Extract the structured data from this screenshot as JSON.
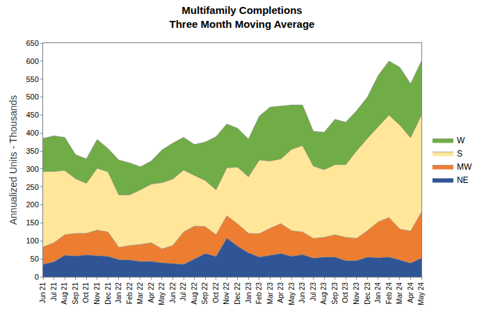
{
  "chart_data": {
    "type": "area",
    "title": "Multifamily Completions",
    "subtitle": "Three Month Moving Average",
    "y_label": "Annualized Units - Thousands",
    "stacked": true,
    "grid": false,
    "legend": "right",
    "categories": [
      "Jun 21",
      "Jul 21",
      "Aug 21",
      "Sep 21",
      "Oct 21",
      "Nov 21",
      "Dec 21",
      "Jan 22",
      "Feb 22",
      "Mar 22",
      "Apr 22",
      "May 22",
      "Jun 22",
      "Jul 22",
      "Aug 22",
      "Sep 22",
      "Oct 22",
      "Nov 22",
      "Dec 22",
      "Jan 23",
      "Feb 23",
      "Mar 23",
      "Apr 23",
      "May 23",
      "Jun 23",
      "Jul 23",
      "Aug 23",
      "Sep 23",
      "Oct 23",
      "Nov 23",
      "Dec 23",
      "Jan 24",
      "Feb 24",
      "Mar 24",
      "Apr 24",
      "May 24"
    ],
    "series": [
      {
        "name": "NE",
        "color": "#2f5597",
        "values": [
          35,
          42,
          60,
          58,
          61,
          59,
          57,
          48,
          47,
          43,
          43,
          39,
          37,
          35,
          50,
          65,
          57,
          108,
          85,
          67,
          55,
          60,
          65,
          57,
          62,
          52,
          55,
          55,
          45,
          45,
          55,
          53,
          55,
          47,
          38,
          52
        ]
      },
      {
        "name": "MW",
        "color": "#ed7d31",
        "values": [
          48,
          53,
          57,
          63,
          60,
          71,
          68,
          34,
          40,
          47,
          52,
          39,
          50,
          90,
          91,
          75,
          60,
          62,
          62,
          54,
          65,
          75,
          83,
          71,
          63,
          55,
          55,
          62,
          65,
          62,
          73,
          100,
          110,
          86,
          89,
          128
        ]
      },
      {
        "name": "S",
        "color": "#ffe699",
        "values": [
          210,
          198,
          179,
          152,
          139,
          172,
          167,
          146,
          141,
          152,
          163,
          184,
          185,
          172,
          141,
          128,
          125,
          133,
          158,
          157,
          205,
          187,
          180,
          227,
          240,
          201,
          188,
          195,
          202,
          243,
          257,
          264,
          285,
          289,
          260,
          270
        ]
      },
      {
        "name": "W",
        "color": "#70ad47",
        "values": [
          92,
          99,
          92,
          67,
          68,
          80,
          65,
          97,
          89,
          64,
          64,
          91,
          100,
          91,
          86,
          107,
          148,
          122,
          108,
          105,
          122,
          150,
          147,
          123,
          113,
          97,
          104,
          126,
          118,
          112,
          115,
          143,
          150,
          161,
          150,
          150
        ]
      }
    ],
    "ylim": [
      0,
      650
    ],
    "yticks": [
      0,
      50,
      100,
      150,
      200,
      250,
      300,
      350,
      400,
      450,
      500,
      550,
      600,
      650
    ]
  }
}
